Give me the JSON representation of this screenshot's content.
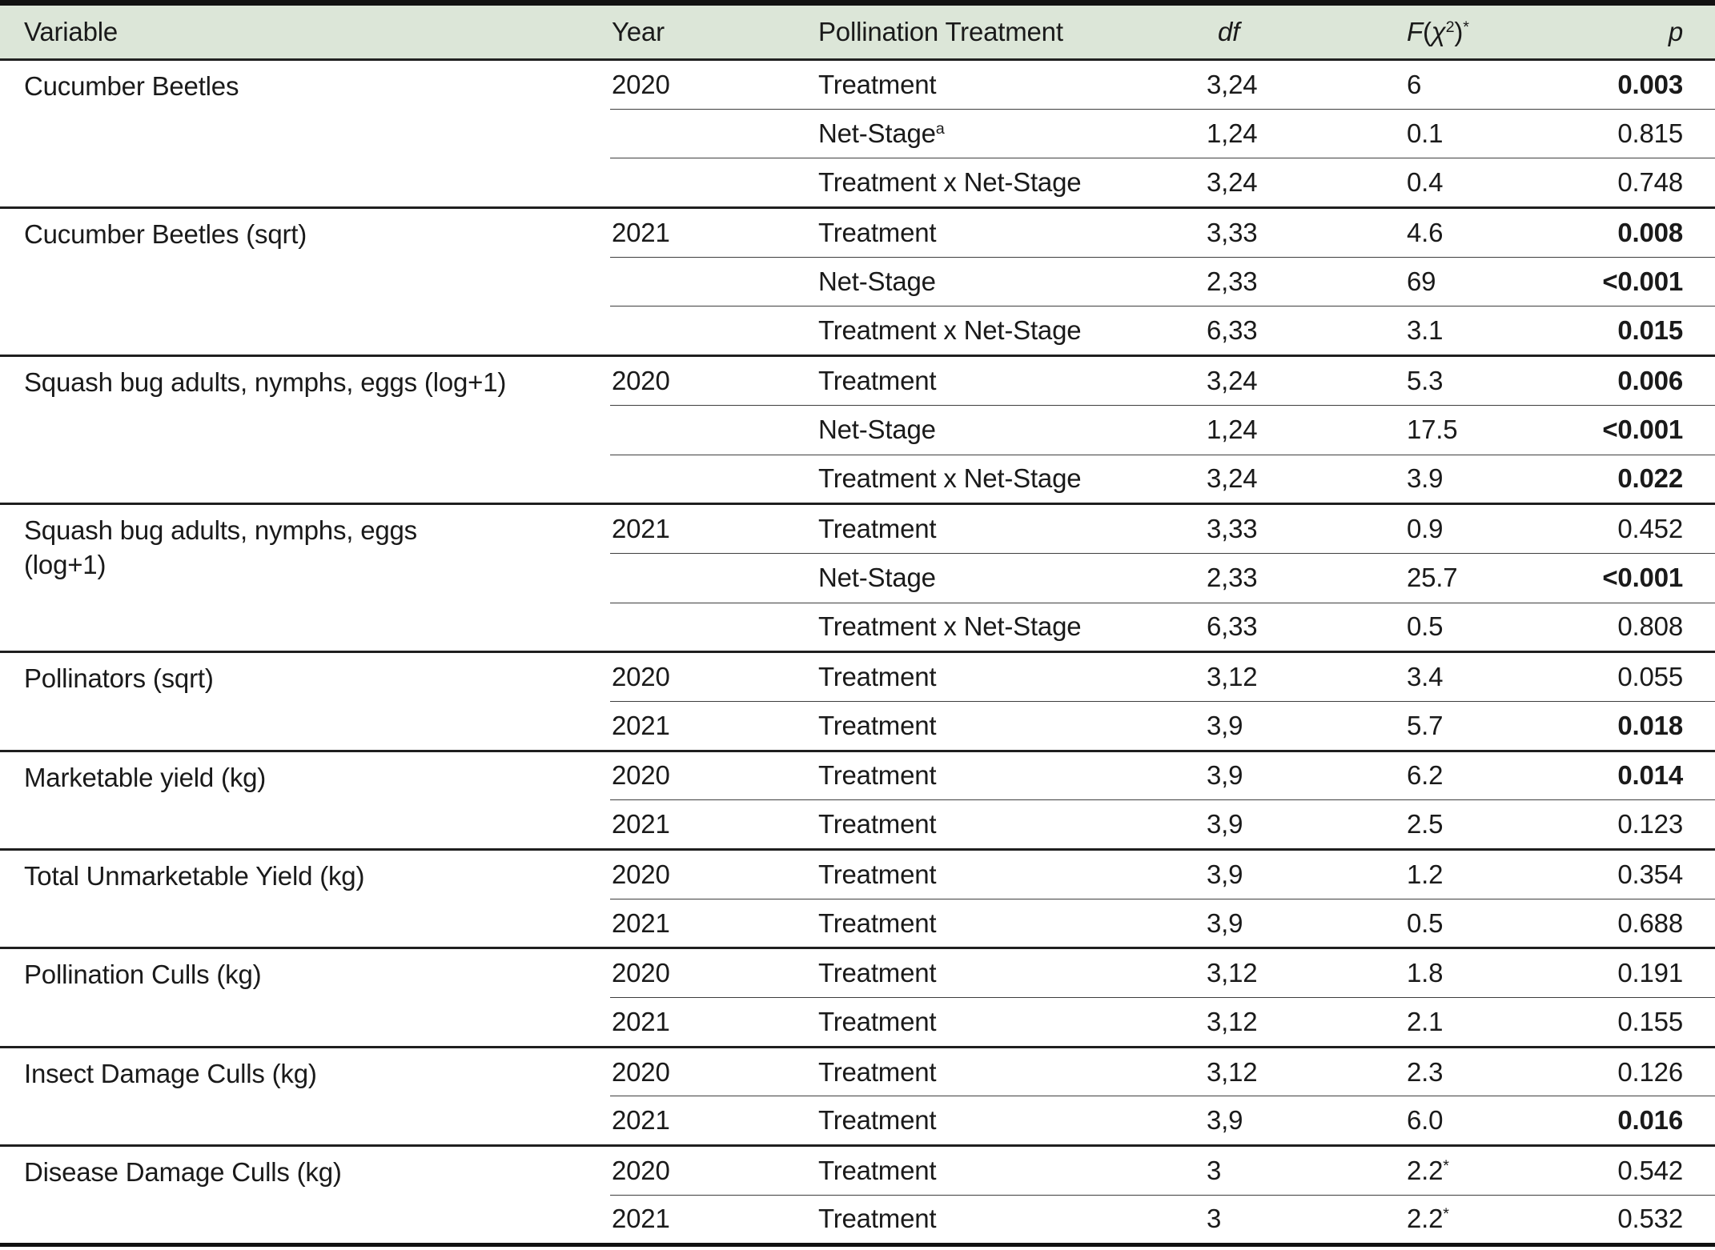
{
  "header": {
    "variable": "Variable",
    "year": "Year",
    "treatment": "Pollination Treatment",
    "df": "df",
    "f_label": "F(χ²)*",
    "f_parts": {
      "f": "F",
      "open": "(",
      "chi": "χ",
      "exp": "2",
      "close": ")",
      "star": "*"
    },
    "p": "p"
  },
  "table": {
    "groups": [
      {
        "variable_lines": [
          "Cucumber Beetles"
        ],
        "rows": [
          {
            "year": "2020",
            "treatment": "Treatment",
            "df": "3,24",
            "f": "6",
            "p": "0.003",
            "p_bold": true
          },
          {
            "year": "",
            "treatment": "Net-Stage",
            "t_sup": "a",
            "df": "1,24",
            "f": "0.1",
            "p": "0.815",
            "p_bold": false
          },
          {
            "year": "",
            "treatment": "Treatment x Net-Stage",
            "df": "3,24",
            "f": "0.4",
            "p": "0.748",
            "p_bold": false
          }
        ]
      },
      {
        "variable_lines": [
          "Cucumber Beetles (sqrt)"
        ],
        "rows": [
          {
            "year": "2021",
            "treatment": "Treatment",
            "df": "3,33",
            "f": "4.6",
            "p": "0.008",
            "p_bold": true
          },
          {
            "year": "",
            "treatment": "Net-Stage",
            "df": "2,33",
            "f": "69",
            "p": "<0.001",
            "p_bold": true
          },
          {
            "year": "",
            "treatment": "Treatment x Net-Stage",
            "df": "6,33",
            "f": "3.1",
            "p": "0.015",
            "p_bold": true
          }
        ]
      },
      {
        "variable_lines": [
          "Squash bug adults, nymphs, eggs (log+1)"
        ],
        "rows": [
          {
            "year": "2020",
            "treatment": "Treatment",
            "df": "3,24",
            "f": "5.3",
            "p": "0.006",
            "p_bold": true
          },
          {
            "year": "",
            "treatment": "Net-Stage",
            "df": "1,24",
            "f": "17.5",
            "p": "<0.001",
            "p_bold": true
          },
          {
            "year": "",
            "treatment": "Treatment x Net-Stage",
            "df": "3,24",
            "f": "3.9",
            "p": "0.022",
            "p_bold": true
          }
        ]
      },
      {
        "variable_lines": [
          "Squash bug adults, nymphs, eggs",
          "(log+1)"
        ],
        "rows": [
          {
            "year": "2021",
            "treatment": "Treatment",
            "df": "3,33",
            "f": "0.9",
            "p": "0.452",
            "p_bold": false
          },
          {
            "year": "",
            "treatment": "Net-Stage",
            "df": "2,33",
            "f": "25.7",
            "p": "<0.001",
            "p_bold": true
          },
          {
            "year": "",
            "treatment": "Treatment x Net-Stage",
            "df": "6,33",
            "f": "0.5",
            "p": "0.808",
            "p_bold": false
          }
        ]
      },
      {
        "variable_lines": [
          "Pollinators (sqrt)"
        ],
        "rows": [
          {
            "year": "2020",
            "treatment": "Treatment",
            "df": "3,12",
            "f": "3.4",
            "p": "0.055",
            "p_bold": false
          },
          {
            "year": "2021",
            "treatment": "Treatment",
            "df": "3,9",
            "f": "5.7",
            "p": "0.018",
            "p_bold": true
          }
        ]
      },
      {
        "variable_lines": [
          "Marketable yield (kg)"
        ],
        "rows": [
          {
            "year": "2020",
            "treatment": "Treatment",
            "df": "3,9",
            "f": "6.2",
            "p": "0.014",
            "p_bold": true
          },
          {
            "year": "2021",
            "treatment": "Treatment",
            "df": "3,9",
            "f": "2.5",
            "p": "0.123",
            "p_bold": false
          }
        ]
      },
      {
        "variable_lines": [
          "Total Unmarketable Yield (kg)"
        ],
        "rows": [
          {
            "year": "2020",
            "treatment": "Treatment",
            "df": "3,9",
            "f": "1.2",
            "p": "0.354",
            "p_bold": false
          },
          {
            "year": "2021",
            "treatment": "Treatment",
            "df": "3,9",
            "f": "0.5",
            "p": "0.688",
            "p_bold": false
          }
        ]
      },
      {
        "variable_lines": [
          "Pollination Culls (kg)"
        ],
        "rows": [
          {
            "year": "2020",
            "treatment": "Treatment",
            "df": "3,12",
            "f": "1.8",
            "p": "0.191",
            "p_bold": false
          },
          {
            "year": "2021",
            "treatment": "Treatment",
            "df": "3,12",
            "f": "2.1",
            "p": "0.155",
            "p_bold": false
          }
        ]
      },
      {
        "variable_lines": [
          "Insect Damage Culls (kg)"
        ],
        "rows": [
          {
            "year": "2020",
            "treatment": "Treatment",
            "df": "3,12",
            "f": "2.3",
            "p": "0.126",
            "p_bold": false
          },
          {
            "year": "2021",
            "treatment": "Treatment",
            "df": "3,9",
            "f": "6.0",
            "p": "0.016",
            "p_bold": true
          }
        ]
      },
      {
        "variable_lines": [
          "Disease Damage Culls (kg)"
        ],
        "rows": [
          {
            "year": "2020",
            "treatment": "Treatment",
            "df": "3",
            "f": "2.2",
            "f_sup": "*",
            "p": "0.542",
            "p_bold": false
          },
          {
            "year": "2021",
            "treatment": "Treatment",
            "df": "3",
            "f": "2.2",
            "f_sup": "*",
            "p": "0.532",
            "p_bold": false
          }
        ]
      }
    ]
  },
  "colors": {
    "header_bg": "#dce6d8",
    "body_bg": "#eff2ec",
    "text": "#1a1a1a",
    "rule_heavy": "#111111",
    "rule_group": "#1f1f1f",
    "rule_sub": "#3e3e3e"
  }
}
